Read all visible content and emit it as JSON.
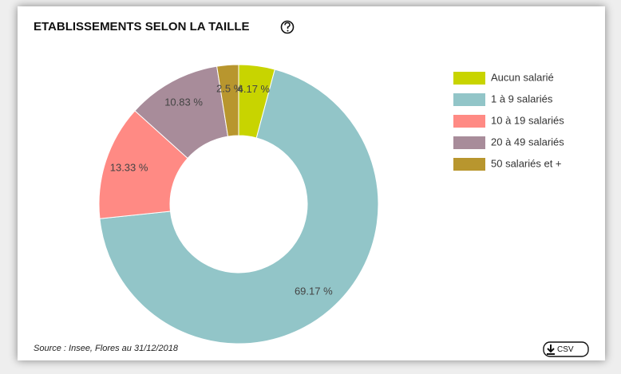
{
  "chart_data": {
    "type": "donut",
    "title": "ETABLISSEMENTS SELON LA TAILLE",
    "categories": [
      "Aucun salarié",
      "1 à 9 salariés",
      "10 à 19 salariés",
      "20 à 49 salariés",
      "50 salariés et +"
    ],
    "values": [
      4.17,
      69.17,
      13.33,
      10.83,
      2.5
    ],
    "value_labels": [
      "4.17 %",
      "69.17 %",
      "13.33 %",
      "10.83 %",
      "2.5 %"
    ],
    "colors": [
      "#c8d400",
      "#92c5c8",
      "#ff8a84",
      "#a88c9a",
      "#b8962e"
    ],
    "legend": "right",
    "source": "Source : Insee, Flores au 31/12/2018",
    "csv_button": "CSV"
  }
}
